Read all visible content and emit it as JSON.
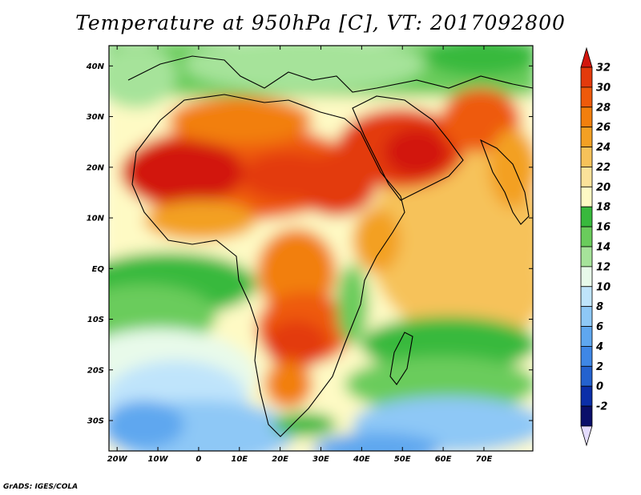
{
  "title": "Temperature at 950hPa [C], VT: 2017092800",
  "credit": "GrADS: IGES/COLA",
  "map": {
    "variable": "Temperature",
    "level": "950hPa",
    "units": "C",
    "valid_time": "2017092800",
    "lat_labels": [
      "40N",
      "30N",
      "20N",
      "10N",
      "EQ",
      "10S",
      "20S",
      "30S"
    ],
    "lat_values": [
      40,
      30,
      20,
      10,
      0,
      -10,
      -20,
      -30
    ],
    "lon_labels": [
      "20W",
      "10W",
      "0",
      "10E",
      "20E",
      "30E",
      "40E",
      "50E",
      "60E",
      "70E"
    ],
    "lon_values": [
      -20,
      -10,
      0,
      10,
      20,
      30,
      40,
      50,
      60,
      70
    ],
    "lon_range": [
      -22,
      82
    ],
    "lat_range": [
      -36,
      44
    ]
  },
  "colorbar": {
    "levels": [
      "32",
      "30",
      "28",
      "26",
      "24",
      "22",
      "20",
      "18",
      "16",
      "14",
      "12",
      "10",
      "8",
      "6",
      "4",
      "2",
      "0",
      "-2"
    ],
    "colors": [
      "#d2160e",
      "#e33a0c",
      "#ee5a0b",
      "#f27f0d",
      "#f3a024",
      "#f6c25a",
      "#fbe29a",
      "#fefac4",
      "#38b93d",
      "#6acc5c",
      "#a6e39a",
      "#e8faea",
      "#bfe4fb",
      "#8ec8f6",
      "#5fa7ef",
      "#3f87e6",
      "#2462cf",
      "#0b2ea8",
      "#0a0f6a",
      "#e4dcff"
    ]
  }
}
